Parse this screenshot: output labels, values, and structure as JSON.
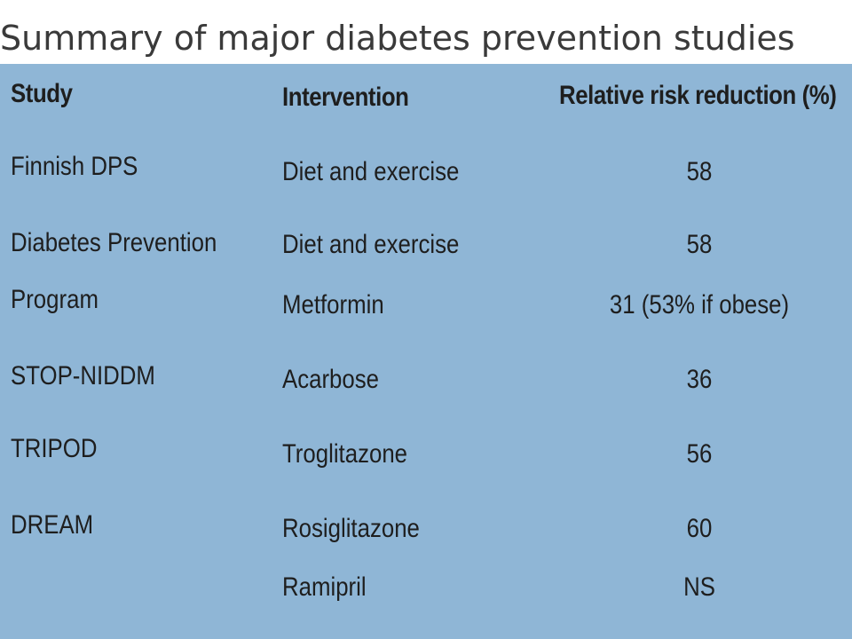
{
  "title": "Summary of major diabetes prevention studies",
  "table": {
    "headers": {
      "study": "Study",
      "intervention": "Intervention",
      "rrr": "Relative risk reduction (%)"
    },
    "rows": [
      {
        "study": "Finnish DPS",
        "intervention": "Diet and exercise",
        "rrr": "58"
      },
      {
        "study": "Diabetes Prevention",
        "intervention": "Diet and exercise",
        "rrr": "58"
      },
      {
        "study": "Program",
        "intervention": "Metformin",
        "rrr": "31 (53% if obese)"
      },
      {
        "study": "STOP-NIDDM",
        "intervention": "Acarbose",
        "rrr": "36"
      },
      {
        "study": "TRIPOD",
        "intervention": "Troglitazone",
        "rrr": "56"
      },
      {
        "study": "DREAM",
        "intervention": "Rosiglitazone",
        "rrr": "60"
      },
      {
        "study": "",
        "intervention": "Ramipril",
        "rrr": "NS"
      }
    ]
  }
}
